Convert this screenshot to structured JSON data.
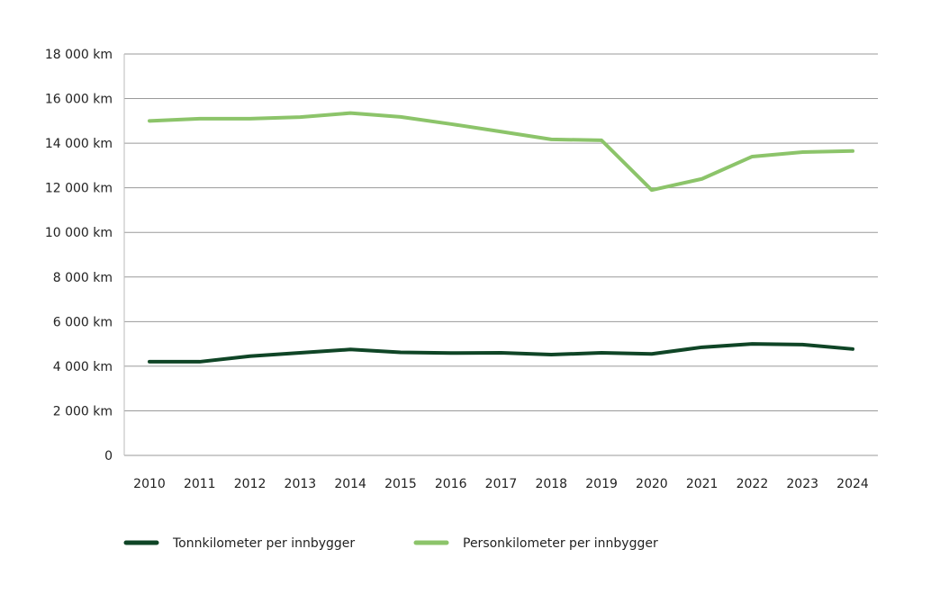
{
  "chart_data": {
    "type": "line",
    "title": "",
    "xlabel": "",
    "ylabel": "",
    "x": [
      2010,
      2011,
      2012,
      2013,
      2014,
      2015,
      2016,
      2017,
      2018,
      2019,
      2020,
      2021,
      2022,
      2023,
      2024
    ],
    "x_tick_labels": [
      "2010",
      "2011",
      "2012",
      "2013",
      "2014",
      "2015",
      "2016",
      "2017",
      "2018",
      "2019",
      "2020",
      "2021",
      "2022",
      "2023",
      "2024"
    ],
    "ylim": [
      0,
      18000
    ],
    "y_ticks": [
      0,
      2000,
      4000,
      6000,
      8000,
      10000,
      12000,
      14000,
      16000,
      18000
    ],
    "y_tick_labels": [
      "0",
      "2 000 km",
      "4 000 km",
      "6 000 km",
      "8 000 km",
      "10 000 km",
      "12 000 km",
      "14 000 km",
      "16 000 km",
      "18 000 km"
    ],
    "grid": "horizontal",
    "legend_position": "bottom-left",
    "series": [
      {
        "name": "Tonnkilometer per innbygger",
        "color": "#0f4526",
        "values": [
          4200,
          4200,
          4450,
          4600,
          4750,
          4620,
          4590,
          4600,
          4520,
          4600,
          4550,
          4850,
          5000,
          4970,
          4770
        ]
      },
      {
        "name": "Personkilometer per innbygger",
        "color": "#8cc46a",
        "values": [
          15000,
          15100,
          15100,
          15170,
          15350,
          15180,
          14860,
          14520,
          14170,
          14130,
          11900,
          12400,
          13400,
          13600,
          13650
        ]
      }
    ]
  }
}
